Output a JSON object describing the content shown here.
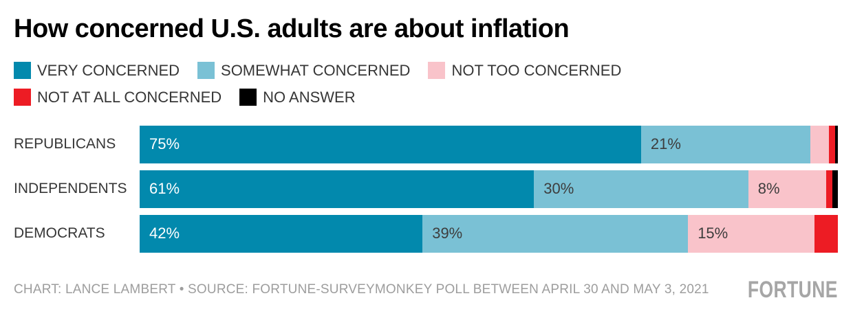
{
  "title": "How concerned U.S. adults are about inflation",
  "colors": {
    "very_concerned": "#0289ad",
    "somewhat_concerned": "#7ac1d5",
    "not_too_concerned": "#f9c3ca",
    "not_at_all_concerned": "#ed1c24",
    "no_answer": "#000000",
    "dark_label": "#3d3d3d",
    "white_label": "#ffffff"
  },
  "legend": [
    {
      "label": "VERY CONCERNED",
      "color": "#0289ad"
    },
    {
      "label": "SOMEWHAT CONCERNED",
      "color": "#7ac1d5"
    },
    {
      "label": "NOT TOO CONCERNED",
      "color": "#f9c3ca"
    },
    {
      "label": "NOT AT ALL CONCERNED",
      "color": "#ed1c24"
    },
    {
      "label": "NO ANSWER",
      "color": "#000000"
    }
  ],
  "chart_data": {
    "type": "bar",
    "orientation": "horizontal",
    "stacked": true,
    "xlim": [
      0,
      100
    ],
    "grid": false,
    "legend_position": "top",
    "categories": [
      "REPUBLICANS",
      "INDEPENDENTS",
      "DEMOCRATS"
    ],
    "series": [
      {
        "name": "VERY CONCERNED",
        "color": "#0289ad",
        "label_color": "#ffffff",
        "values": [
          75,
          61,
          42
        ],
        "labels": [
          "75%",
          "61%",
          "42%"
        ]
      },
      {
        "name": "SOMEWHAT CONCERNED",
        "color": "#7ac1d5",
        "label_color": "#3d3d3d",
        "values": [
          21,
          30,
          39
        ],
        "labels": [
          "21%",
          "30%",
          "39%"
        ]
      },
      {
        "name": "NOT TOO CONCERNED",
        "color": "#f9c3ca",
        "label_color": "#3d3d3d",
        "values": [
          3,
          8,
          15
        ],
        "labels": [
          "",
          "8%",
          "15%"
        ]
      },
      {
        "name": "NOT AT ALL CONCERNED",
        "color": "#ed1c24",
        "label_color": "#ffffff",
        "values": [
          1,
          1,
          4
        ],
        "labels": [
          "",
          "",
          ""
        ]
      },
      {
        "name": "NO ANSWER",
        "color": "#000000",
        "label_color": "#ffffff",
        "values": [
          0.5,
          1,
          0
        ],
        "labels": [
          "",
          "",
          ""
        ]
      }
    ]
  },
  "footer": {
    "credit": "CHART: LANCE LAMBERT • SOURCE: FORTUNE-SURVEYMONKEY POLL BETWEEN APRIL 30 AND MAY 3, 2021",
    "brand": "FORTUNE"
  }
}
